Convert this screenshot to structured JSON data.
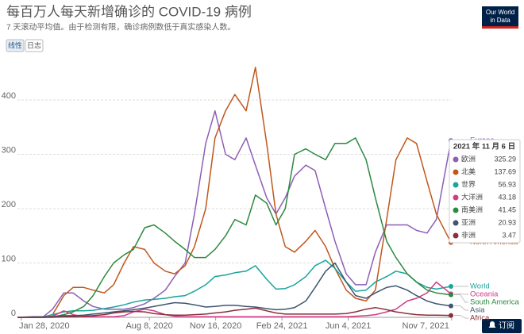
{
  "chart_data": {
    "type": "line",
    "title": "每百万人每天新增确诊的 COVID-19 病例",
    "subtitle": "7 天滚动平均值。由于检测有限，确诊病例数低于真实感染人数。",
    "scale_buttons": [
      "线性",
      "日志"
    ],
    "active_scale": "线性",
    "logo": [
      "Our World",
      "in Data"
    ],
    "subscribe": "订阅",
    "x": [
      "2020-01-22",
      "2020-02-15",
      "2020-03-01",
      "2020-03-15",
      "2020-04-01",
      "2020-04-15",
      "2020-05-01",
      "2020-05-15",
      "2020-06-01",
      "2020-06-15",
      "2020-07-01",
      "2020-07-15",
      "2020-08-01",
      "2020-08-15",
      "2020-09-01",
      "2020-09-15",
      "2020-10-01",
      "2020-10-15",
      "2020-11-01",
      "2020-11-15",
      "2020-12-01",
      "2020-12-15",
      "2021-01-01",
      "2021-01-15",
      "2021-02-01",
      "2021-02-15",
      "2021-03-01",
      "2021-03-15",
      "2021-04-01",
      "2021-04-15",
      "2021-05-01",
      "2021-05-15",
      "2021-06-01",
      "2021-06-15",
      "2021-07-01",
      "2021-07-15",
      "2021-08-01",
      "2021-08-15",
      "2021-09-01",
      "2021-09-15",
      "2021-10-01",
      "2021-10-15",
      "2021-11-06"
    ],
    "xlim": [
      "2020-01-22",
      "2021-11-06"
    ],
    "xticks": [
      {
        "value": "2020-01-28",
        "label": "Jan 28, 2020"
      },
      {
        "value": "2020-08-08",
        "label": "Aug 8, 2020"
      },
      {
        "value": "2020-11-16",
        "label": "Nov 16, 2020"
      },
      {
        "value": "2021-02-24",
        "label": "Feb 24, 2021"
      },
      {
        "value": "2021-06-04",
        "label": "Jun 4, 2021"
      },
      {
        "value": "2021-11-07",
        "label": "Nov 7, 2021"
      }
    ],
    "ylim": [
      0,
      470
    ],
    "yticks": [
      0,
      100,
      200,
      300,
      400
    ],
    "grid": true,
    "series": [
      {
        "name": "Europe",
        "tooltip_label": "欧洲",
        "color": "#8c5fb5",
        "values": [
          0,
          0,
          1,
          15,
          45,
          45,
          30,
          20,
          15,
          15,
          15,
          18,
          25,
          35,
          50,
          75,
          100,
          190,
          320,
          380,
          300,
          290,
          330,
          280,
          220,
          190,
          220,
          260,
          280,
          270,
          200,
          140,
          80,
          60,
          60,
          120,
          170,
          170,
          170,
          160,
          155,
          180,
          325.29
        ]
      },
      {
        "name": "North America",
        "tooltip_label": "北美",
        "color": "#c0571c",
        "values": [
          0,
          0,
          0,
          5,
          40,
          55,
          55,
          50,
          45,
          60,
          100,
          130,
          125,
          100,
          85,
          80,
          95,
          130,
          200,
          330,
          380,
          410,
          380,
          460,
          320,
          190,
          130,
          120,
          140,
          160,
          130,
          90,
          50,
          35,
          30,
          50,
          180,
          290,
          330,
          320,
          250,
          190,
          137.69
        ]
      },
      {
        "name": "World",
        "tooltip_label": "世界",
        "color": "#18a59c",
        "values": [
          0,
          0,
          1,
          5,
          10,
          12,
          12,
          13,
          16,
          19,
          23,
          28,
          32,
          33,
          35,
          38,
          40,
          48,
          60,
          75,
          78,
          82,
          85,
          95,
          70,
          52,
          53,
          60,
          75,
          95,
          105,
          90,
          65,
          48,
          50,
          65,
          75,
          85,
          80,
          65,
          55,
          52,
          56.93
        ]
      },
      {
        "name": "Oceania",
        "tooltip_label": "大洋洲",
        "color": "#d23b87",
        "values": [
          0,
          0,
          0,
          2,
          12,
          5,
          1,
          1,
          1,
          1,
          3,
          10,
          15,
          12,
          5,
          2,
          1,
          1,
          1,
          1,
          1,
          1,
          1,
          1,
          1,
          1,
          1,
          1,
          1,
          1,
          1,
          1,
          1,
          2,
          3,
          5,
          10,
          15,
          30,
          35,
          45,
          65,
          43.18
        ]
      },
      {
        "name": "South America",
        "tooltip_label": "南美洲",
        "color": "#2b8a3e",
        "values": [
          0,
          0,
          0,
          1,
          5,
          10,
          20,
          40,
          75,
          100,
          115,
          125,
          165,
          170,
          155,
          140,
          125,
          110,
          110,
          125,
          150,
          180,
          170,
          225,
          210,
          170,
          200,
          300,
          310,
          300,
          290,
          320,
          320,
          330,
          290,
          220,
          140,
          110,
          80,
          65,
          50,
          45,
          41.45
        ]
      },
      {
        "name": "Asia",
        "tooltip_label": "亚洲",
        "color": "#3f5670",
        "values": [
          0,
          1,
          1,
          1,
          3,
          3,
          4,
          6,
          8,
          10,
          12,
          14,
          17,
          20,
          24,
          27,
          26,
          23,
          19,
          20,
          22,
          22,
          20,
          19,
          16,
          14,
          15,
          18,
          30,
          55,
          85,
          100,
          65,
          40,
          35,
          45,
          55,
          58,
          50,
          40,
          30,
          25,
          20.93
        ]
      },
      {
        "name": "Africa",
        "tooltip_label": "非洲",
        "color": "#8a2f3a",
        "values": [
          0,
          0,
          0,
          0,
          1,
          1,
          2,
          3,
          5,
          8,
          10,
          11,
          10,
          7,
          5,
          4,
          4,
          5,
          6,
          8,
          10,
          13,
          15,
          17,
          12,
          8,
          6,
          6,
          6,
          6,
          6,
          6,
          7,
          10,
          15,
          18,
          14,
          10,
          7,
          5,
          4,
          4,
          3.47
        ]
      }
    ],
    "tooltip": {
      "date": "2021 年 11 月 6 日"
    }
  }
}
